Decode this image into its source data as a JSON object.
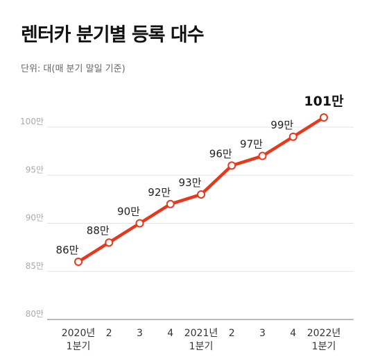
{
  "title": "렌터카 분기별 등록 대수",
  "unit_note": "단위: 대(매 분기 말일 기준)",
  "colors": {
    "line": "#e8381b",
    "marker_fill": "#ffffff",
    "grid": "#e3e3e3",
    "text": "#222222"
  },
  "chart_data": {
    "type": "line",
    "title": "렌터카 분기별 등록 대수",
    "xlabel": "",
    "ylabel": "",
    "ylim": [
      80,
      100
    ],
    "yticks": [
      {
        "value": 80,
        "label": "80만"
      },
      {
        "value": 85,
        "label": "85만"
      },
      {
        "value": 90,
        "label": "90만"
      },
      {
        "value": 95,
        "label": "95만"
      },
      {
        "value": 100,
        "label": "100만"
      }
    ],
    "categories": [
      [
        "2020년",
        "1분기"
      ],
      [
        "2"
      ],
      [
        "3"
      ],
      [
        "4"
      ],
      [
        "2021년",
        "1분기"
      ],
      [
        "2"
      ],
      [
        "3"
      ],
      [
        "4"
      ],
      [
        "2022년",
        "1분기"
      ]
    ],
    "values": [
      86,
      88,
      90,
      92,
      93,
      96,
      97,
      99,
      101
    ],
    "data_labels": [
      "86만",
      "88만",
      "90만",
      "92만",
      "93만",
      "96만",
      "97만",
      "99만",
      "101만"
    ],
    "grid": true,
    "legend": "none"
  }
}
